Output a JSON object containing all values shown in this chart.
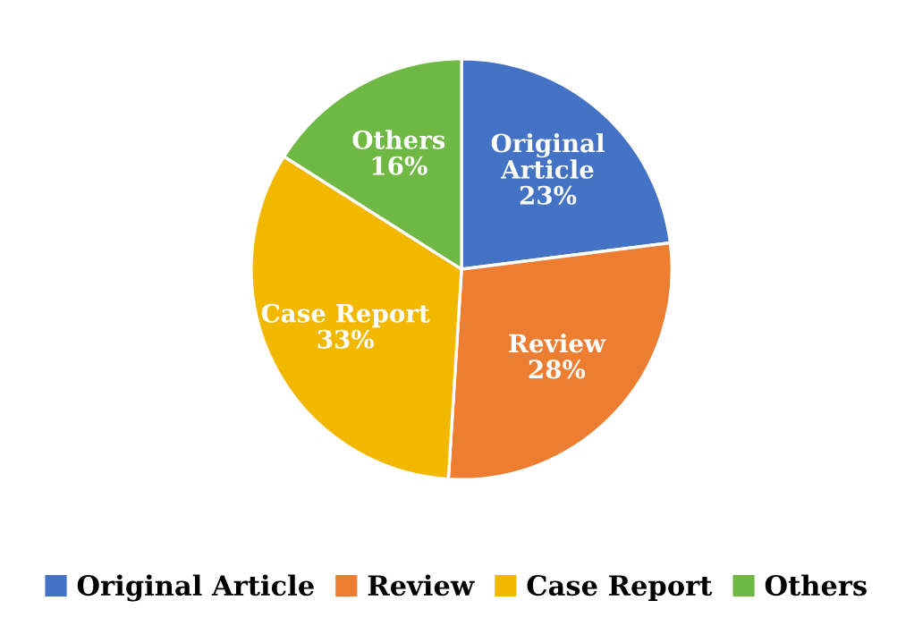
{
  "chart_data": {
    "type": "pie",
    "categories": [
      "Original Article",
      "Review",
      "Case Report",
      "Others"
    ],
    "values": [
      23,
      28,
      33,
      16
    ],
    "colors": [
      "#4472c4",
      "#ed7d31",
      "#f2b800",
      "#70b844"
    ],
    "value_labels": [
      "Original\nArticle\n23%",
      "Review\n28%",
      "Case Report\n33%",
      "Others\n16%"
    ],
    "legend": "bottom"
  }
}
